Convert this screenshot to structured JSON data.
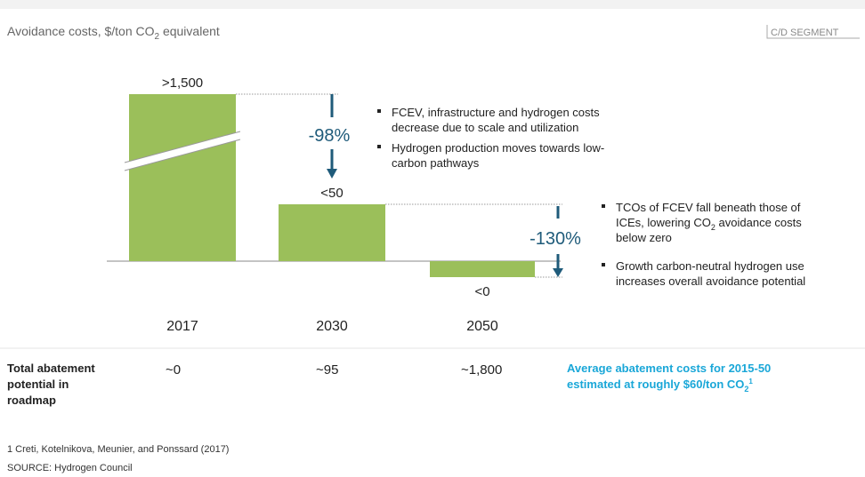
{
  "header": {
    "title": [
      "Avoidance costs, $/ton CO",
      "2",
      " equivalent"
    ],
    "tag": "C/D SEGMENT"
  },
  "bars": [
    {
      "year": "2017",
      "label": ">1,500"
    },
    {
      "year": "2030",
      "label": "<50"
    },
    {
      "year": "2050",
      "label": "<0"
    }
  ],
  "changes": [
    "-98%",
    "-130%"
  ],
  "notes_1": [
    "FCEV, infrastructure and hydrogen costs",
    "decrease due to scale and utilization",
    "Hydrogen production moves towards low-",
    "carbon pathways"
  ],
  "notes_2": [
    "TCOs of FCEV fall beneath those of",
    "ICEs, lowering CO",
    "2",
    " avoidance costs",
    "below zero",
    "Growth carbon-neutral hydrogen use",
    "increases overall avoidance potential"
  ],
  "abatement": {
    "label": [
      "Total abatement",
      "potential in",
      "roadmap"
    ],
    "values": [
      "~0",
      "~95",
      "~1,800"
    ],
    "average": [
      "Average abatement costs for 2015-50",
      "estimated at roughly $60/ton CO",
      "2",
      "1"
    ]
  },
  "footnote": "1 Creti, Kotelnikova, Meunier, and Ponssard (2017)",
  "source": "SOURCE: Hydrogen Council"
}
